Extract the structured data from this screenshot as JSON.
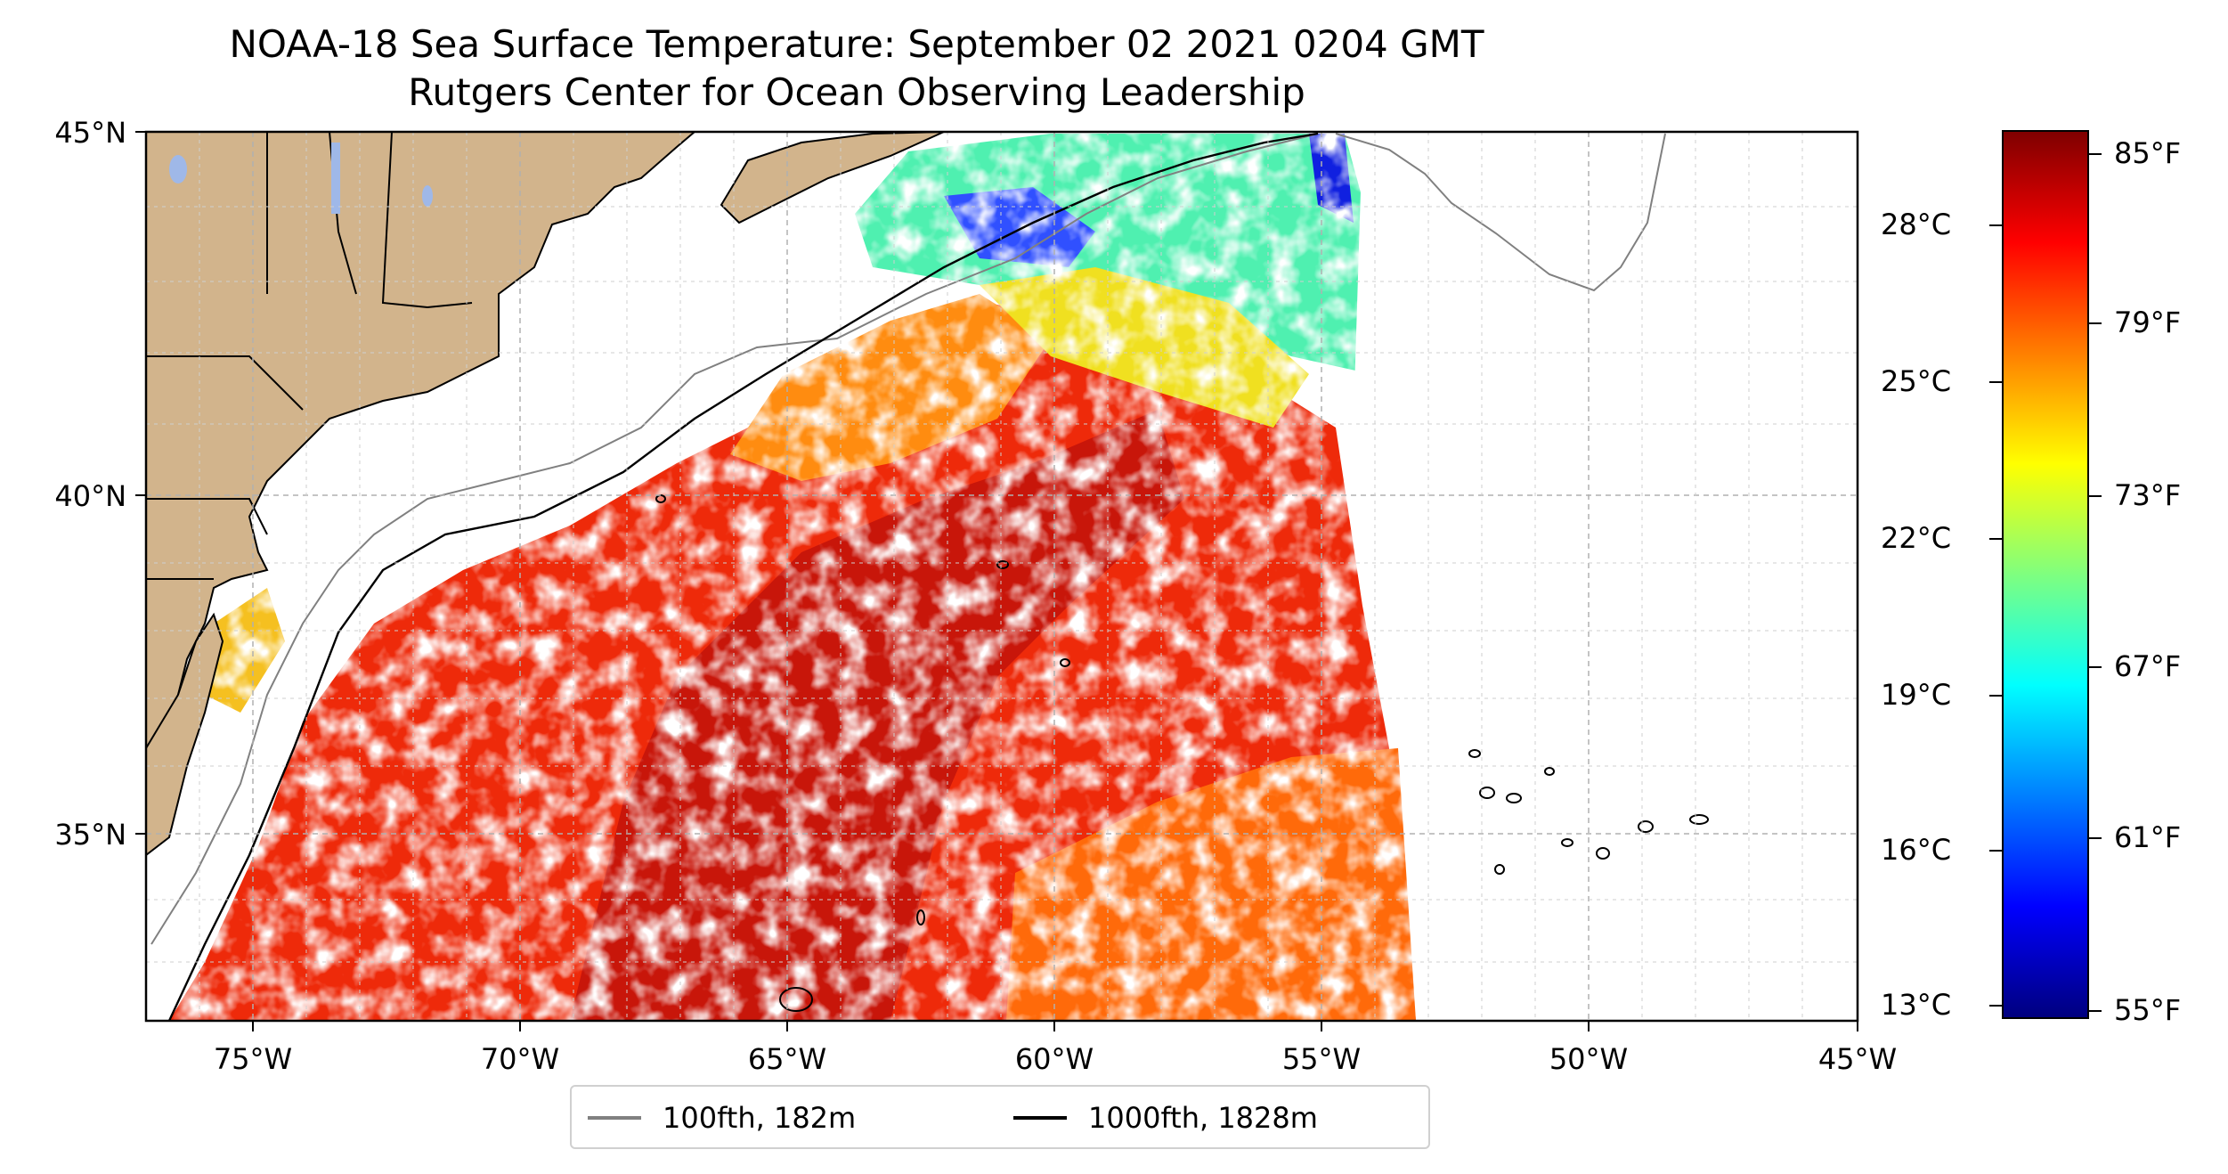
{
  "title": "NOAA-18 Sea Surface Temperature: September 02 2021 0204 GMT",
  "subtitle": "Rutgers Center for Ocean Observing Leadership",
  "map": {
    "lon_range": [
      -77,
      -45
    ],
    "lat_range": [
      32.5,
      45
    ],
    "lat_ticks": [
      {
        "value": 45,
        "label": "45°N"
      },
      {
        "value": 40,
        "label": "40°N"
      },
      {
        "value": 35,
        "label": "35°N"
      }
    ],
    "lon_ticks": [
      {
        "value": -75,
        "label": "75°W"
      },
      {
        "value": -70,
        "label": "70°W"
      },
      {
        "value": -65,
        "label": "65°W"
      },
      {
        "value": -60,
        "label": "60°W"
      },
      {
        "value": -55,
        "label": "55°W"
      },
      {
        "value": -50,
        "label": "50°W"
      },
      {
        "value": -45,
        "label": "45°W"
      }
    ],
    "gridlines": true,
    "land_color": "#d2b48c",
    "lake_color": "#9fb8e8"
  },
  "legend": {
    "placement": "bottom-center",
    "items": [
      {
        "label": "100fth, 182m",
        "color": "#808080"
      },
      {
        "label": "1000fth, 1828m",
        "color": "#000000"
      }
    ]
  },
  "colorbar": {
    "colormap": "jet",
    "range_f": [
      55,
      86
    ],
    "celsius_ticks": [
      {
        "value": 28,
        "label": "28°C"
      },
      {
        "value": 25,
        "label": "25°C"
      },
      {
        "value": 22,
        "label": "22°C"
      },
      {
        "value": 19,
        "label": "19°C"
      },
      {
        "value": 16,
        "label": "16°C"
      },
      {
        "value": 13,
        "label": "13°C"
      }
    ],
    "fahrenheit_ticks": [
      {
        "value": 85,
        "label": "85°F"
      },
      {
        "value": 79,
        "label": "79°F"
      },
      {
        "value": 73,
        "label": "73°F"
      },
      {
        "value": 67,
        "label": "67°F"
      },
      {
        "value": 61,
        "label": "61°F"
      },
      {
        "value": 55,
        "label": "55°F"
      }
    ]
  }
}
